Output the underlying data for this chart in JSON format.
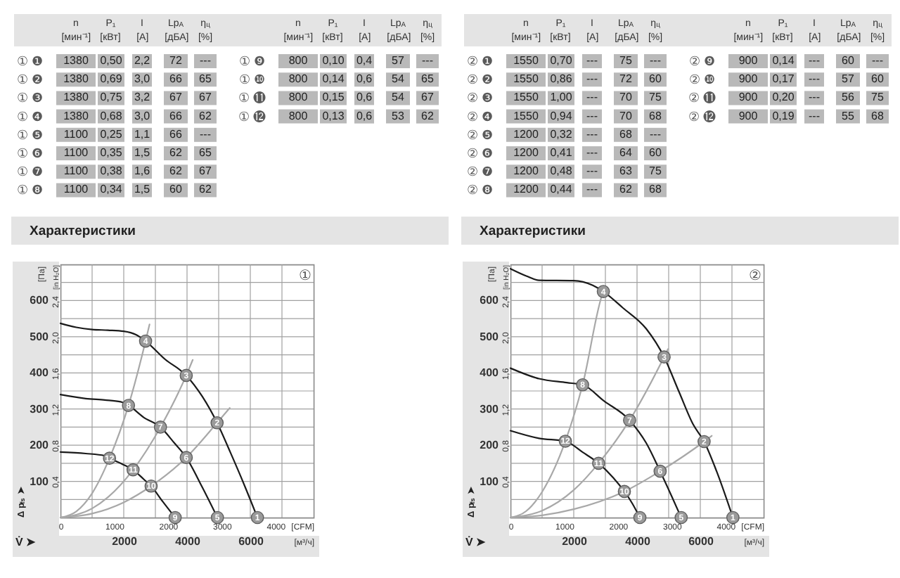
{
  "chart_data": [
    {
      "type": "other",
      "categories": [
        "n\n[мин⁻¹]",
        "P₁\n[кВт]",
        "I\n[А]",
        "Lp$_{A}$\n[дБА]",
        "η$_{ц}$\n[%]"
      ],
      "y_categories": [
        "① ❶",
        "① ❷",
        "① ❸",
        "① ❹",
        "① ❺",
        "① ❻",
        "① ❼",
        "① ❽"
      ],
      "cell_labels": [
        [
          "1380",
          "0,50",
          "2,2",
          "72",
          "---"
        ],
        [
          "1380",
          "0,69",
          "3,0",
          "66",
          "65"
        ],
        [
          "1380",
          "0,75",
          "3,2",
          "67",
          "67"
        ],
        [
          "1380",
          "0,68",
          "3,0",
          "66",
          "62"
        ],
        [
          "1100",
          "0,25",
          "1,1",
          "66",
          "---"
        ],
        [
          "1100",
          "0,35",
          "1,5",
          "62",
          "65"
        ],
        [
          "1100",
          "0,38",
          "1,6",
          "62",
          "67"
        ],
        [
          "1100",
          "0,34",
          "1,5",
          "60",
          "62"
        ]
      ]
    },
    {
      "type": "other",
      "categories": [
        "n\n[мин⁻¹]",
        "P₁\n[кВт]",
        "I\n[А]",
        "Lp$_{A}$\n[дБА]",
        "η$_{ц}$\n[%]"
      ],
      "y_categories": [
        "① ❾",
        "① ❿",
        "① ⓫",
        "① ⓬"
      ],
      "cell_labels": [
        [
          "800",
          "0,10",
          "0,4",
          "57",
          "---"
        ],
        [
          "800",
          "0,14",
          "0,6",
          "54",
          "65"
        ],
        [
          "800",
          "0,15",
          "0,6",
          "54",
          "67"
        ],
        [
          "800",
          "0,13",
          "0,6",
          "53",
          "62"
        ]
      ]
    },
    {
      "type": "other",
      "categories": [
        "n\n[мин⁻¹]",
        "P₁\n[кВт]",
        "I\n[А]",
        "Lp$_{A}$\n[дБА]",
        "η$_{ц}$\n[%]"
      ],
      "y_categories": [
        "② ❶",
        "② ❷",
        "② ❸",
        "② ❹",
        "② ❺",
        "② ❻",
        "② ❼",
        "② ❽"
      ],
      "cell_labels": [
        [
          "1550",
          "0,70",
          "---",
          "75",
          "---"
        ],
        [
          "1550",
          "0,86",
          "---",
          "72",
          "60"
        ],
        [
          "1550",
          "1,00",
          "---",
          "70",
          "75"
        ],
        [
          "1550",
          "0,94",
          "---",
          "70",
          "68"
        ],
        [
          "1200",
          "0,32",
          "---",
          "68",
          "---"
        ],
        [
          "1200",
          "0,41",
          "---",
          "64",
          "60"
        ],
        [
          "1200",
          "0,48",
          "---",
          "63",
          "75"
        ],
        [
          "1200",
          "0,44",
          "---",
          "62",
          "68"
        ]
      ]
    },
    {
      "type": "other",
      "categories": [
        "n\n[мин⁻¹]",
        "P₁\n[кВт]",
        "I\n[А]",
        "Lp$_{A}$\n[дБА]",
        "η$_{ц}$\n[%]"
      ],
      "y_categories": [
        "② ❾",
        "② ❿",
        "② ⓫",
        "② ⓬"
      ],
      "cell_labels": [
        [
          "900",
          "0,14",
          "---",
          "60",
          "---"
        ],
        [
          "900",
          "0,17",
          "---",
          "57",
          "60"
        ],
        [
          "900",
          "0,20",
          "---",
          "56",
          "75"
        ],
        [
          "900",
          "0,19",
          "---",
          "55",
          "68"
        ]
      ]
    },
    {
      "type": "line",
      "title": "Характеристики",
      "xlabel": "[м³/ч]",
      "x2label": "[CFM]",
      "ylabel": "[Па]",
      "y2label": "[in H₂O]",
      "xlim": [
        0,
        8000
      ],
      "xticks": [
        {
          "value": 1000,
          "label": null
        },
        2000,
        {
          "value": 3000,
          "label": null
        },
        4000,
        {
          "value": 5000,
          "label": null
        },
        6000,
        {
          "value": 7000,
          "label": null
        }
      ],
      "x2lim": [
        0,
        4709
      ],
      "x2ticks": [
        0,
        1000,
        2000,
        3000,
        4000
      ],
      "ylim": [
        0,
        700
      ],
      "yticks": [
        {
          "value": 50,
          "label": null
        },
        100,
        {
          "value": 150,
          "label": null
        },
        200,
        {
          "value": 250,
          "label": null
        },
        300,
        {
          "value": 350,
          "label": null
        },
        400,
        {
          "value": 450,
          "label": null
        },
        500,
        {
          "value": 550,
          "label": null
        },
        600,
        {
          "value": 650,
          "label": null
        }
      ],
      "y2lim": [
        0,
        2.81
      ],
      "y2ticks": [
        {
          "value": 0.4,
          "label": "0,4"
        },
        {
          "value": 0.8,
          "label": "0,8"
        },
        {
          "value": 1.2,
          "label": "1,2"
        },
        {
          "value": 1.6,
          "label": "1,6"
        },
        {
          "value": 2.0,
          "label": "2,0"
        },
        {
          "value": 2.4,
          "label": "2,4"
        }
      ],
      "grid": true,
      "series": [
        {
          "color": "#1a1a1a",
          "x": [
            0,
            500,
            1000,
            1500,
            2000,
            2400,
            2690,
            3300,
            3975,
            4480,
            4950,
            5370,
            5810,
            6225
          ],
          "values": [
            537,
            526,
            520,
            518,
            515,
            505,
            488,
            438,
            393,
            335,
            262,
            180,
            90,
            0
          ]
        },
        {
          "color": "#1a1a1a",
          "x": [
            0,
            800,
            1400,
            1900,
            2150,
            2630,
            3160,
            3600,
            3975,
            4480,
            4960
          ],
          "values": [
            340,
            329,
            325,
            320,
            310,
            277,
            250,
            206,
            166,
            84,
            0
          ]
        },
        {
          "color": "#1a1a1a",
          "x": [
            0,
            800,
            1400,
            1550,
            1970,
            2295,
            2630,
            2865,
            3225,
            3625
          ],
          "values": [
            181,
            177,
            171,
            164,
            147,
            132,
            106,
            87,
            45,
            0
          ]
        },
        {
          "color": "#a8a8a8",
          "x": [
            0,
            500,
            1000,
            1550,
            2150,
            2690,
            2815
          ],
          "values": [
            0,
            17,
            67,
            164,
            310,
            488,
            534
          ]
        },
        {
          "color": "#a8a8a8",
          "x": [
            0,
            1000,
            1500,
            2295,
            3160,
            3975,
            4180
          ],
          "values": [
            0,
            25,
            56,
            132,
            250,
            393,
            436
          ]
        },
        {
          "color": "#a8a8a8",
          "x": [
            0,
            1000,
            2000,
            2865,
            3975,
            4950,
            5350
          ],
          "values": [
            0,
            11,
            42,
            87,
            166,
            262,
            303
          ]
        },
        {
          "type": "scatter",
          "marker": "circle",
          "color": "#9a9a9a",
          "x": [
            6225,
            4950,
            3975,
            2690,
            4960,
            3975,
            3160,
            2150,
            3625,
            2865,
            2295,
            1550
          ],
          "values": [
            0,
            262,
            393,
            488,
            0,
            166,
            250,
            310,
            0,
            87,
            132,
            164
          ]
        }
      ],
      "annotations": [
        "①",
        "Δ p$_{fs}$ ➤",
        "V̇ ➤",
        {
          "text": "1",
          "x": 6225,
          "y": 0
        },
        {
          "text": "2",
          "x": 4950,
          "y": 262
        },
        {
          "text": "3",
          "x": 3975,
          "y": 393
        },
        {
          "text": "4",
          "x": 2690,
          "y": 488
        },
        {
          "text": "5",
          "x": 4960,
          "y": 0
        },
        {
          "text": "6",
          "x": 3975,
          "y": 166
        },
        {
          "text": "7",
          "x": 3160,
          "y": 250
        },
        {
          "text": "8",
          "x": 2150,
          "y": 310
        },
        {
          "text": "9",
          "x": 3625,
          "y": 0
        },
        {
          "text": "10",
          "x": 2865,
          "y": 87
        },
        {
          "text": "11",
          "x": 2295,
          "y": 132
        },
        {
          "text": "12",
          "x": 1550,
          "y": 164
        }
      ]
    },
    {
      "type": "line",
      "title": "Характеристики",
      "xlabel": "[м³/ч]",
      "x2label": "[CFM]",
      "ylabel": "[Па]",
      "y2label": "[in H₂O]",
      "xlim": [
        0,
        8000
      ],
      "xticks": [
        {
          "value": 1000,
          "label": null
        },
        2000,
        {
          "value": 3000,
          "label": null
        },
        4000,
        {
          "value": 5000,
          "label": null
        },
        6000,
        {
          "value": 7000,
          "label": null
        }
      ],
      "x2lim": [
        0,
        4709
      ],
      "x2ticks": [
        0,
        1000,
        2000,
        3000,
        4000
      ],
      "ylim": [
        0,
        700
      ],
      "yticks": [
        {
          "value": 50,
          "label": null
        },
        100,
        {
          "value": 150,
          "label": null
        },
        200,
        {
          "value": 250,
          "label": null
        },
        300,
        {
          "value": 350,
          "label": null
        },
        400,
        {
          "value": 450,
          "label": null
        },
        500,
        {
          "value": 550,
          "label": null
        },
        600,
        {
          "value": 650,
          "label": null
        }
      ],
      "y2lim": [
        0,
        2.81
      ],
      "y2ticks": [
        {
          "value": 0.4,
          "label": "0,4"
        },
        {
          "value": 0.8,
          "label": "0,8"
        },
        {
          "value": 1.2,
          "label": "1,2"
        },
        {
          "value": 1.6,
          "label": "1,6"
        },
        {
          "value": 2.0,
          "label": "2,0"
        },
        {
          "value": 2.4,
          "label": "2,4"
        }
      ],
      "grid": true,
      "series": [
        {
          "color": "#1a1a1a",
          "x": [
            0,
            500,
            900,
            2000,
            2600,
            2935,
            3550,
            4290,
            4855,
            5325,
            5770,
            6120,
            6510,
            7030
          ],
          "values": [
            688,
            668,
            656,
            655,
            642,
            625,
            580,
            522,
            444,
            348,
            258,
            210,
            129,
            0
          ]
        },
        {
          "color": "#1a1a1a",
          "x": [
            0,
            900,
            1780,
            2280,
            2960,
            3765,
            4290,
            4730,
            5100,
            5395
          ],
          "values": [
            413,
            384,
            373,
            367,
            322,
            269,
            206,
            128,
            58,
            0
          ]
        },
        {
          "color": "#1a1a1a",
          "x": [
            0,
            900,
            1735,
            2290,
            2785,
            3250,
            3600,
            3850,
            4090
          ],
          "values": [
            240,
            219,
            211,
            180,
            150,
            110,
            72,
            39,
            0
          ]
        },
        {
          "color": "#a8a8a8",
          "x": [
            0,
            500,
            1000,
            1735,
            2280,
            2935,
            2990
          ],
          "values": [
            0,
            18,
            71,
            211,
            367,
            625,
            635
          ]
        },
        {
          "color": "#a8a8a8",
          "x": [
            0,
            1000,
            2000,
            2785,
            3765,
            4855,
            4980
          ],
          "values": [
            0,
            19,
            76,
            150,
            269,
            444,
            466
          ]
        },
        {
          "color": "#a8a8a8",
          "x": [
            0,
            1000,
            2000,
            3600,
            4730,
            6120,
            6360
          ],
          "values": [
            0,
            6,
            23,
            72,
            128,
            210,
            226
          ]
        },
        {
          "type": "scatter",
          "marker": "circle",
          "color": "#9a9a9a",
          "x": [
            7030,
            6120,
            4855,
            2935,
            5395,
            4730,
            3765,
            2280,
            4090,
            3600,
            2785,
            1735
          ],
          "values": [
            0,
            210,
            444,
            625,
            0,
            128,
            269,
            367,
            0,
            72,
            150,
            211
          ]
        }
      ],
      "annotations": [
        "②",
        "Δ p$_{fs}$ ➤",
        "V̇ ➤",
        {
          "text": "1",
          "x": 7030,
          "y": 0
        },
        {
          "text": "2",
          "x": 6120,
          "y": 210
        },
        {
          "text": "3",
          "x": 4855,
          "y": 444
        },
        {
          "text": "4",
          "x": 2935,
          "y": 625
        },
        {
          "text": "5",
          "x": 5395,
          "y": 0
        },
        {
          "text": "6",
          "x": 4730,
          "y": 128
        },
        {
          "text": "7",
          "x": 3765,
          "y": 269
        },
        {
          "text": "8",
          "x": 2280,
          "y": 367
        },
        {
          "text": "9",
          "x": 4090,
          "y": 0
        },
        {
          "text": "10",
          "x": 3600,
          "y": 72
        },
        {
          "text": "11",
          "x": 2785,
          "y": 150
        },
        {
          "text": "12",
          "x": 1735,
          "y": 211
        }
      ]
    }
  ]
}
